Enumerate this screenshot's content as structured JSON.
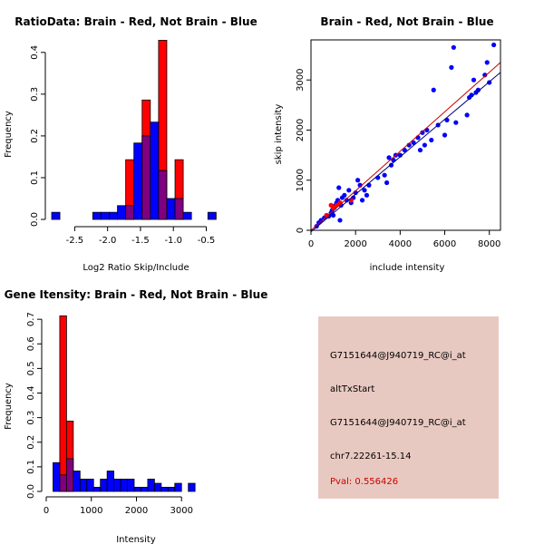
{
  "colors": {
    "red": "#ff0000",
    "blue": "#0000ff",
    "overlap": "#7f007f",
    "panel_bg": "#e8c9c1",
    "pval": "#cc0000"
  },
  "chart_data": [
    {
      "type": "histogram",
      "title": "RatioData: Brain - Red, Not Brain - Blue",
      "xlabel": "Log2 Ratio Skip/Include",
      "ylabel": "Frequency",
      "xlim": [
        -2.85,
        -0.3
      ],
      "ylim": [
        0,
        0.43
      ],
      "xticks": [
        -2.5,
        -2.0,
        -1.5,
        -1.0,
        -0.5
      ],
      "xtick_labels": [
        "-2.5",
        "-2.0",
        "-1.5",
        "-1.0",
        "-0.5"
      ],
      "yticks": [
        0,
        0.1,
        0.2,
        0.3,
        0.4
      ],
      "ytick_labels": [
        "0.0",
        "0.1",
        "0.2",
        "0.3",
        "0.4"
      ],
      "bins": [
        -2.85,
        -2.725,
        -2.6,
        -2.475,
        -2.35,
        -2.225,
        -2.1,
        -1.975,
        -1.85,
        -1.725,
        -1.6,
        -1.475,
        -1.35,
        -1.225,
        -1.1,
        -0.975,
        -0.85,
        -0.725,
        -0.6,
        -0.475,
        -0.35
      ],
      "series": [
        {
          "name": "Brain",
          "color": "red",
          "values": [
            0,
            0,
            0,
            0,
            0,
            0,
            0,
            0,
            0,
            0.143,
            0,
            0.286,
            0,
            0.429,
            0,
            0.143,
            0,
            0,
            0,
            0
          ]
        },
        {
          "name": "Not Brain",
          "color": "blue",
          "values": [
            0.017,
            0,
            0,
            0,
            0,
            0.017,
            0.017,
            0.017,
            0.033,
            0.033,
            0.183,
            0.2,
            0.233,
            0.117,
            0.05,
            0.05,
            0.017,
            0,
            0,
            0.017
          ]
        }
      ]
    },
    {
      "type": "scatter",
      "title": "Brain - Red, Not Brain - Blue",
      "xlabel": "include intensity",
      "ylabel": "skip intensity",
      "xlim": [
        0,
        8500
      ],
      "ylim": [
        0,
        3800
      ],
      "xticks": [
        0,
        2000,
        4000,
        6000,
        8000
      ],
      "xtick_labels": [
        "0",
        "2000",
        "4000",
        "6000",
        "8000"
      ],
      "yticks": [
        0,
        1000,
        2000,
        3000
      ],
      "ytick_labels": [
        "0",
        "1000",
        "2000",
        "3000"
      ],
      "series": [
        {
          "name": "Not Brain",
          "color": "blue",
          "points": [
            [
              250,
              80
            ],
            [
              350,
              150
            ],
            [
              450,
              200
            ],
            [
              600,
              250
            ],
            [
              700,
              300
            ],
            [
              800,
              280
            ],
            [
              900,
              350
            ],
            [
              950,
              400
            ],
            [
              1000,
              300
            ],
            [
              1050,
              450
            ],
            [
              1100,
              500
            ],
            [
              1150,
              550
            ],
            [
              1200,
              600
            ],
            [
              1250,
              850
            ],
            [
              1300,
              200
            ],
            [
              1350,
              500
            ],
            [
              1400,
              650
            ],
            [
              1500,
              700
            ],
            [
              1600,
              600
            ],
            [
              1700,
              800
            ],
            [
              1800,
              550
            ],
            [
              1900,
              650
            ],
            [
              2000,
              750
            ],
            [
              2100,
              1000
            ],
            [
              2200,
              900
            ],
            [
              2300,
              600
            ],
            [
              2400,
              800
            ],
            [
              2500,
              700
            ],
            [
              2600,
              900
            ],
            [
              3000,
              1050
            ],
            [
              3300,
              1100
            ],
            [
              3400,
              950
            ],
            [
              3500,
              1450
            ],
            [
              3600,
              1300
            ],
            [
              3700,
              1400
            ],
            [
              3800,
              1500
            ],
            [
              4000,
              1500
            ],
            [
              4200,
              1600
            ],
            [
              4400,
              1700
            ],
            [
              4600,
              1750
            ],
            [
              4800,
              1850
            ],
            [
              4900,
              1600
            ],
            [
              5000,
              1950
            ],
            [
              5100,
              1700
            ],
            [
              5200,
              2000
            ],
            [
              5400,
              1800
            ],
            [
              5500,
              2800
            ],
            [
              5700,
              2100
            ],
            [
              6000,
              1900
            ],
            [
              6100,
              2200
            ],
            [
              6300,
              3250
            ],
            [
              6400,
              3650
            ],
            [
              6500,
              2150
            ],
            [
              7000,
              2300
            ],
            [
              7100,
              2650
            ],
            [
              7200,
              2700
            ],
            [
              7300,
              3000
            ],
            [
              7400,
              2750
            ],
            [
              7500,
              2800
            ],
            [
              7800,
              3100
            ],
            [
              7900,
              3350
            ],
            [
              8000,
              2950
            ],
            [
              8200,
              3700
            ]
          ]
        },
        {
          "name": "Brain",
          "color": "red",
          "points": [
            [
              700,
              300
            ],
            [
              900,
              500
            ],
            [
              1000,
              450
            ],
            [
              1150,
              500
            ],
            [
              1300,
              550
            ],
            [
              1800,
              600
            ]
          ]
        }
      ],
      "fit_lines": [
        {
          "color": "red",
          "from": [
            0,
            0
          ],
          "to": [
            8500,
            3350
          ]
        },
        {
          "color": "blue",
          "from": [
            0,
            -30
          ],
          "to": [
            8500,
            3150
          ]
        }
      ]
    },
    {
      "type": "histogram",
      "title": "Gene Itensity: Brain - Red, Not Brain - Blue",
      "xlabel": "Intensity",
      "ylabel": "Frequency",
      "xlim": [
        0,
        3900
      ],
      "ylim": [
        0,
        0.73
      ],
      "xticks": [
        0,
        1000,
        2000,
        3000
      ],
      "xtick_labels": [
        "0",
        "1000",
        "2000",
        "3000"
      ],
      "yticks": [
        0,
        0.1,
        0.2,
        0.3,
        0.4,
        0.5,
        0.6,
        0.7
      ],
      "ytick_labels": [
        "0.0",
        "0.1",
        "0.2",
        "0.3",
        "0.4",
        "0.5",
        "0.6",
        "0.7"
      ],
      "bins": [
        0,
        150,
        300,
        450,
        600,
        750,
        900,
        1050,
        1200,
        1350,
        1500,
        1650,
        1800,
        1950,
        2100,
        2250,
        2400,
        2550,
        2700,
        2850,
        3000,
        3150,
        3300,
        3450,
        3600,
        3750
      ],
      "series": [
        {
          "name": "Brain",
          "color": "red",
          "values": [
            0,
            0,
            0.714,
            0.286,
            0,
            0,
            0,
            0,
            0,
            0,
            0,
            0,
            0,
            0,
            0,
            0,
            0,
            0,
            0,
            0,
            0,
            0,
            0,
            0,
            0
          ]
        },
        {
          "name": "Not Brain",
          "color": "blue",
          "values": [
            0,
            0.117,
            0.067,
            0.133,
            0.083,
            0.05,
            0.05,
            0.017,
            0.05,
            0.083,
            0.05,
            0.05,
            0.05,
            0.017,
            0.017,
            0.05,
            0.033,
            0.017,
            0.017,
            0.033,
            0,
            0.033,
            0,
            0,
            0
          ]
        }
      ]
    }
  ],
  "info_panel": {
    "line1": "G7151644@J940719_RC@i_at",
    "line2": "altTxStart",
    "line3": "G7151644@J940719_RC@i_at",
    "line4": "chr7.22261-15.14",
    "pval": "Pval: 0.556426"
  }
}
